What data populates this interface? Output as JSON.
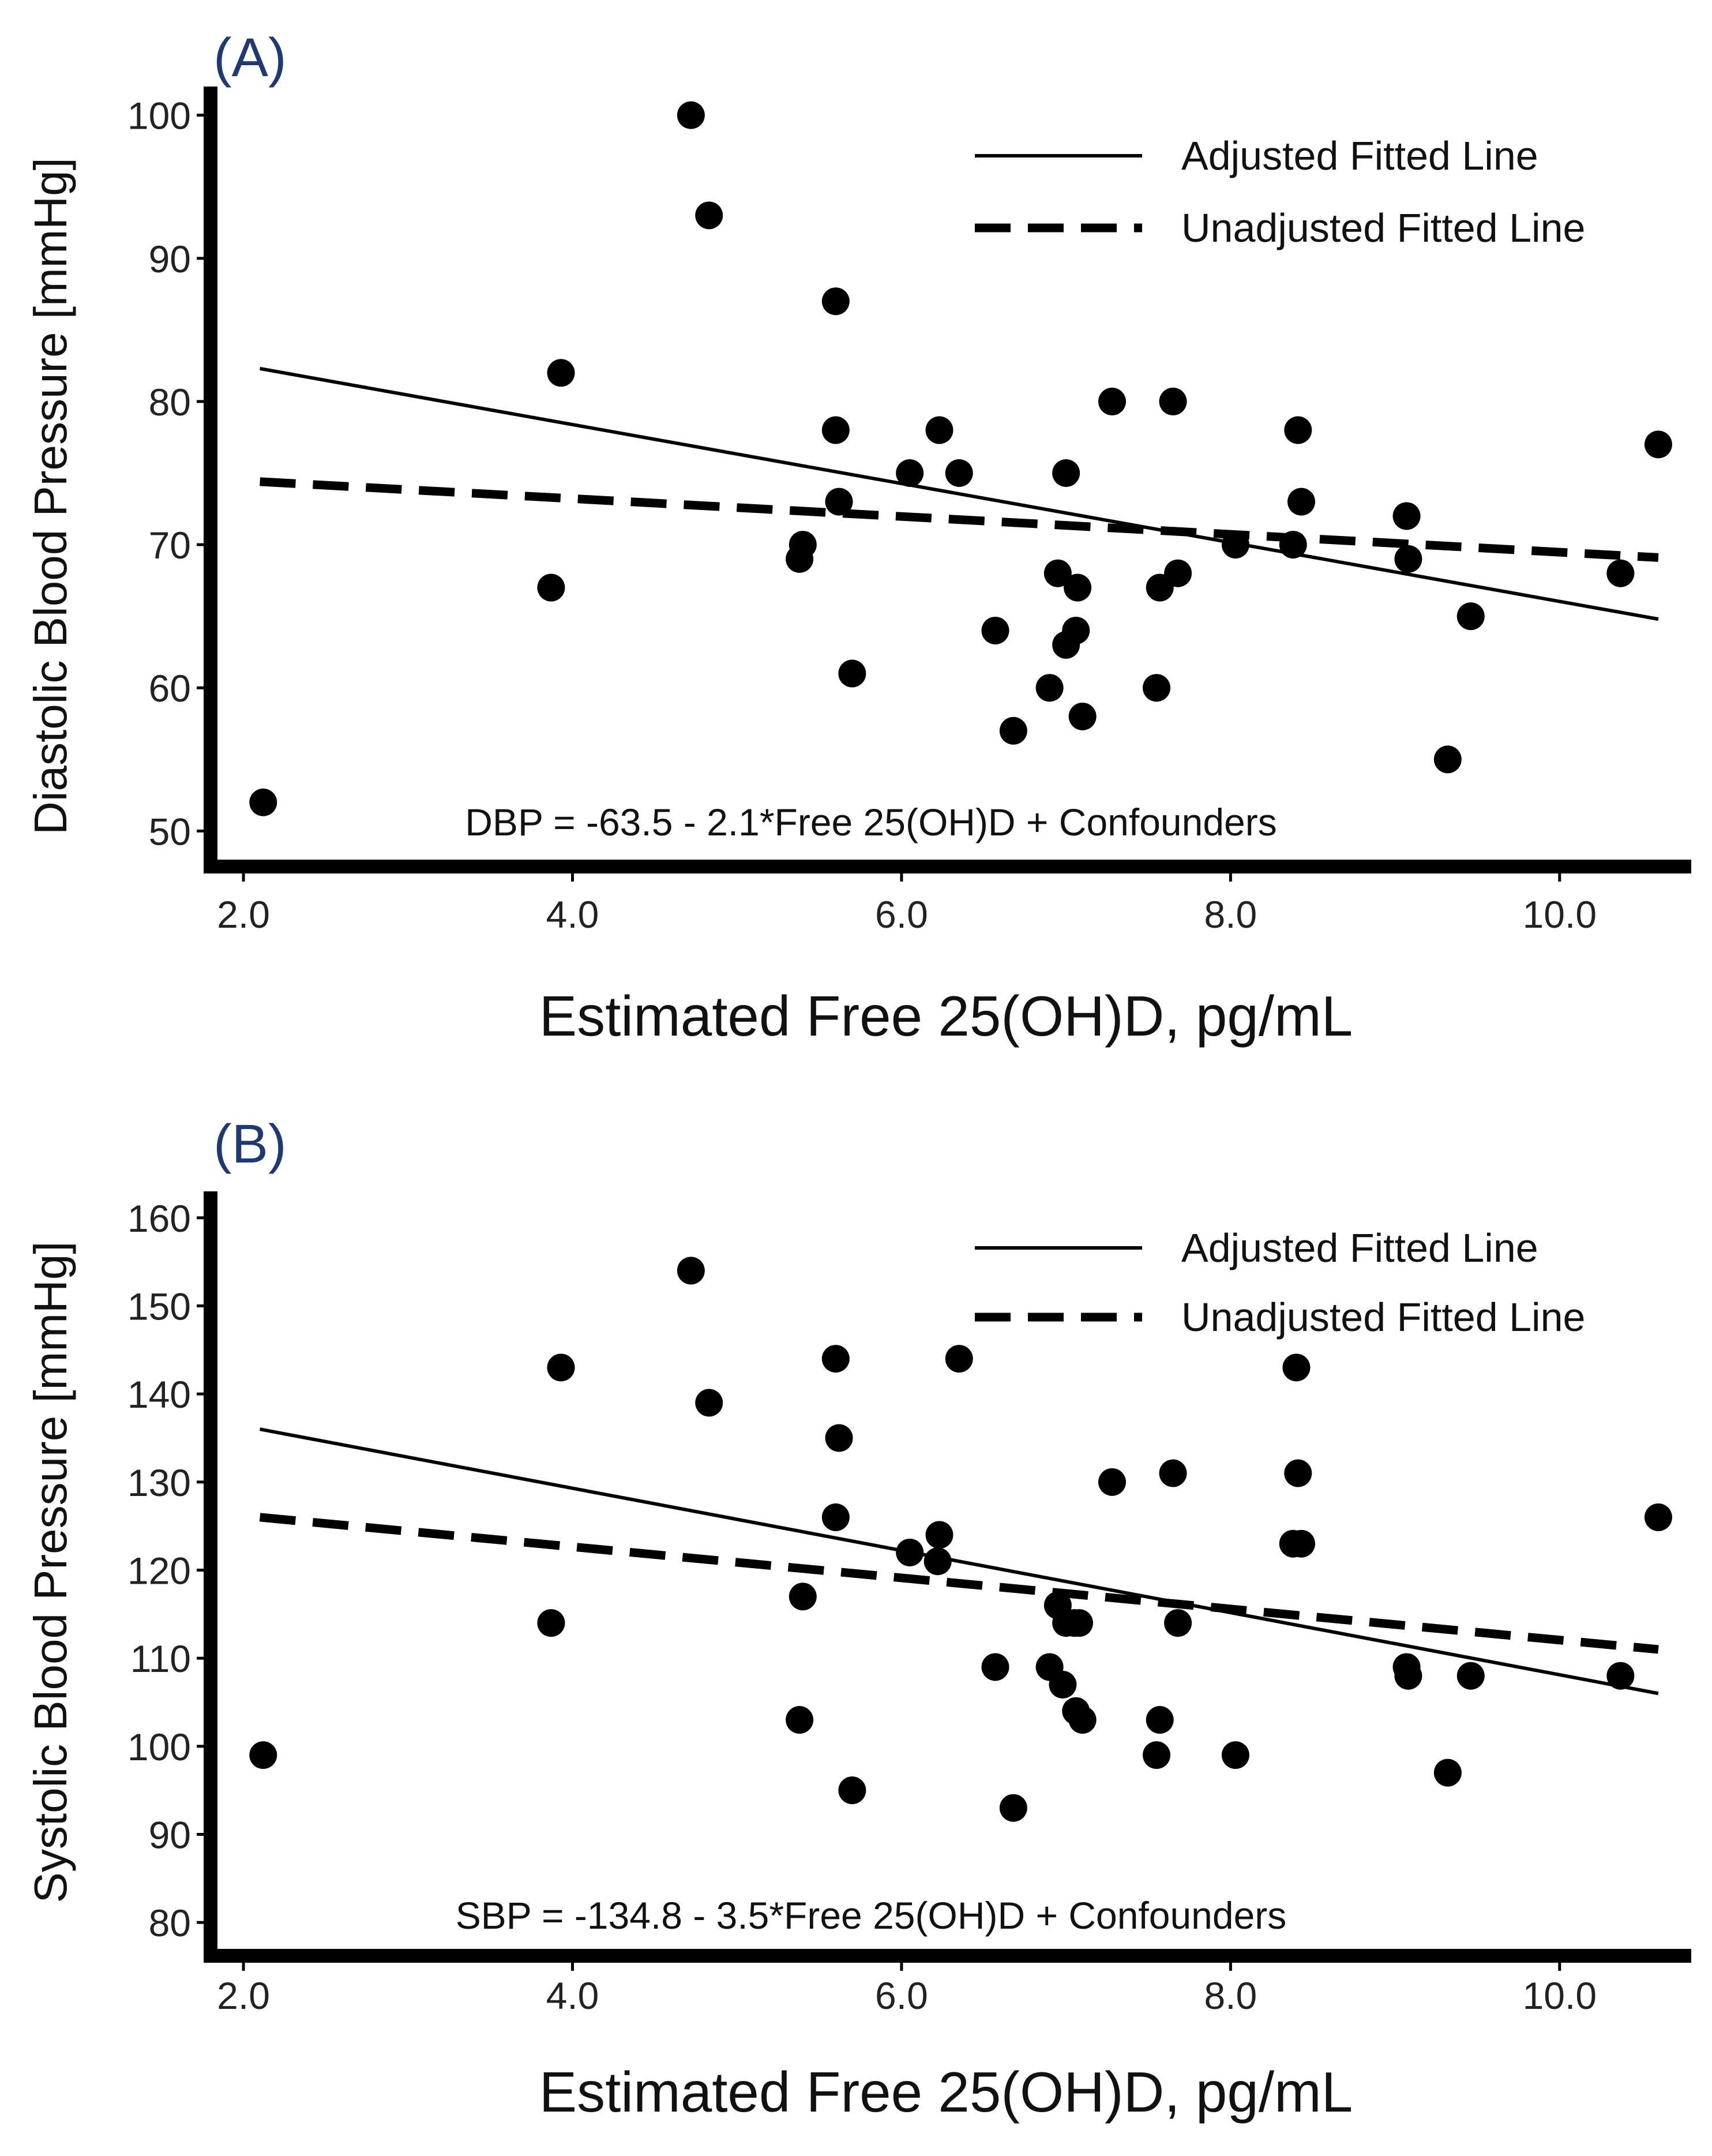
{
  "chart_data": [
    {
      "type": "scatter",
      "panel_label": "(A)",
      "xlabel": "Estimated Free 25(OH)D, pg/mL",
      "ylabel": "Diastolic Blood Pressure [mmHg]",
      "xlim": [
        1.8,
        10.8
      ],
      "ylim": [
        48,
        102
      ],
      "xticks": [
        2.0,
        4.0,
        6.0,
        8.0,
        10.0
      ],
      "xtick_labels": [
        "2.0",
        "4.0",
        "6.0",
        "8.0",
        "10.0"
      ],
      "yticks": [
        50,
        60,
        70,
        80,
        90,
        100
      ],
      "ytick_labels": [
        "50",
        "60",
        "70",
        "80",
        "90",
        "100"
      ],
      "legend": [
        "Adjusted Fitted Line",
        "Unadjusted Fitted Line"
      ],
      "legend_placement": "top-right",
      "equation": "DBP = -63.5 - 2.1*Free 25(OH)D + Confounders",
      "adjusted_line": {
        "x": [
          2.1,
          10.6
        ],
        "y": [
          82.3,
          64.8
        ]
      },
      "unadjusted_line": {
        "x": [
          2.1,
          10.6
        ],
        "y": [
          74.4,
          69.1
        ]
      },
      "points": {
        "x": [
          2.12,
          3.87,
          3.93,
          4.72,
          4.83,
          5.38,
          5.4,
          5.6,
          5.62,
          5.6,
          5.7,
          6.05,
          6.23,
          6.35,
          6.57,
          6.68,
          6.9,
          6.95,
          7.0,
          7.0,
          7.06,
          7.07,
          7.1,
          7.28,
          7.55,
          7.57,
          7.65,
          7.68,
          8.03,
          8.38,
          8.41,
          8.43,
          9.07,
          9.08,
          9.32,
          9.46,
          10.37,
          10.6
        ],
        "y": [
          52,
          67,
          82,
          100,
          93,
          69,
          70,
          78,
          73,
          87,
          61,
          75,
          78,
          75,
          64,
          57,
          60,
          68,
          63,
          75,
          64,
          67,
          58,
          80,
          60,
          67,
          80,
          68,
          70,
          70,
          78,
          73,
          72,
          69,
          55,
          65,
          68,
          77
        ]
      }
    },
    {
      "type": "scatter",
      "panel_label": "(B)",
      "xlabel": "Estimated Free 25(OH)D, pg/mL",
      "ylabel": "Systolic Blood Pressure [mmHg]",
      "xlim": [
        1.8,
        10.8
      ],
      "ylim": [
        77,
        163
      ],
      "xticks": [
        2.0,
        4.0,
        6.0,
        8.0,
        10.0
      ],
      "xtick_labels": [
        "2.0",
        "4.0",
        "6.0",
        "8.0",
        "10.0"
      ],
      "yticks": [
        80,
        90,
        100,
        110,
        120,
        130,
        140,
        150,
        160
      ],
      "ytick_labels": [
        "80",
        "90",
        "100",
        "110",
        "120",
        "130",
        "140",
        "150",
        "160"
      ],
      "legend": [
        "Adjusted Fitted Line",
        "Unadjusted Fitted Line"
      ],
      "legend_placement": "top-right",
      "equation": "SBP = -134.8 - 3.5*Free 25(OH)D + Confounders",
      "adjusted_line": {
        "x": [
          2.1,
          10.6
        ],
        "y": [
          136,
          106
        ]
      },
      "unadjusted_line": {
        "x": [
          2.1,
          10.6
        ],
        "y": [
          126,
          111
        ]
      },
      "points": {
        "x": [
          2.12,
          3.87,
          3.93,
          4.72,
          4.83,
          5.38,
          5.4,
          5.6,
          5.6,
          5.62,
          5.7,
          6.05,
          6.22,
          6.23,
          6.35,
          6.57,
          6.68,
          6.9,
          6.95,
          6.98,
          7.0,
          7.05,
          7.06,
          7.08,
          7.1,
          7.28,
          7.55,
          7.57,
          7.65,
          7.68,
          8.03,
          8.38,
          8.4,
          8.41,
          8.43,
          9.07,
          9.08,
          9.32,
          9.46,
          10.37,
          10.6
        ],
        "y": [
          99,
          114,
          143,
          154,
          139,
          103,
          117,
          144,
          126,
          135,
          95,
          122,
          121,
          124,
          144,
          109,
          93,
          109,
          116,
          107,
          114,
          114,
          104,
          114,
          103,
          130,
          99,
          103,
          131,
          114,
          99,
          123,
          143,
          131,
          123,
          109,
          108,
          97,
          108,
          108,
          126
        ]
      }
    }
  ]
}
